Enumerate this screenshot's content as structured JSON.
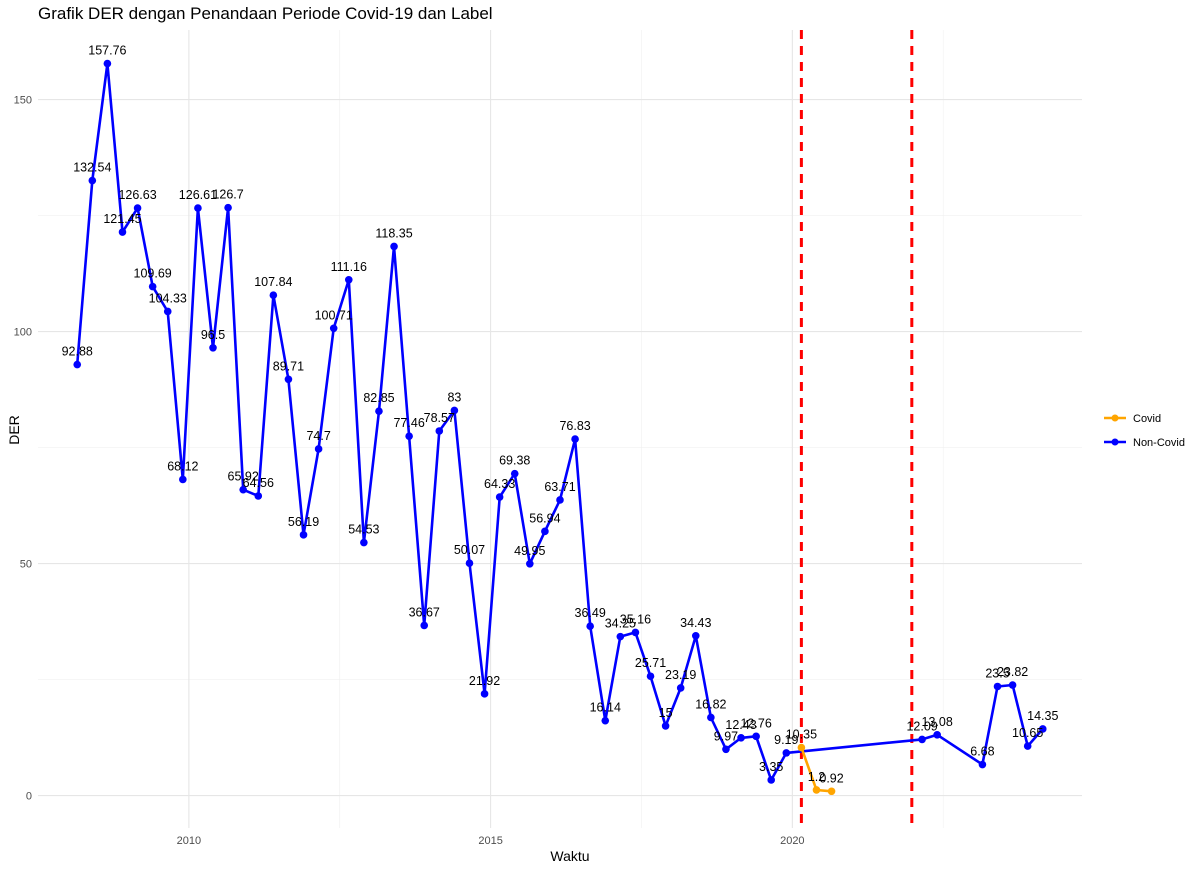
{
  "chart_data": {
    "type": "line",
    "title": "Grafik DER dengan Penandaan Periode Covid-19 dan Label",
    "xlabel": "Waktu",
    "ylabel": "DER",
    "xlim": [
      2007.5,
      2024.8
    ],
    "ylim": [
      -7,
      165
    ],
    "x_ticks": [
      2010,
      2015,
      2020
    ],
    "y_ticks": [
      0,
      50,
      100,
      150
    ],
    "grid": true,
    "legend_position": "right",
    "colors": {
      "Non-Covid": "#0000ff",
      "Covid": "#ffa500",
      "period_marker": "#ff0000"
    },
    "covid_period_markers": [
      2020.15,
      2021.98
    ],
    "series": [
      {
        "name": "Non-Covid",
        "x": [
          2008.15,
          2008.4,
          2008.65,
          2008.9,
          2009.15,
          2009.4,
          2009.65,
          2009.9,
          2010.15,
          2010.4,
          2010.65,
          2010.9,
          2011.15,
          2011.4,
          2011.65,
          2011.9,
          2012.15,
          2012.4,
          2012.65,
          2012.9,
          2013.15,
          2013.4,
          2013.65,
          2013.9,
          2014.15,
          2014.4,
          2014.65,
          2014.9,
          2015.15,
          2015.4,
          2015.65,
          2015.9,
          2016.15,
          2016.4,
          2016.65,
          2016.9,
          2017.15,
          2017.4,
          2017.65,
          2017.9,
          2018.15,
          2018.4,
          2018.65,
          2018.9,
          2019.15,
          2019.4,
          2019.65,
          2019.9,
          2022.15,
          2022.4,
          2023.15,
          2023.4,
          2023.65,
          2023.9,
          2024.15
        ],
        "y": [
          92.88,
          132.54,
          157.76,
          121.45,
          126.63,
          109.69,
          104.33,
          68.12,
          126.61,
          96.5,
          126.7,
          65.92,
          64.56,
          107.84,
          89.71,
          56.19,
          74.7,
          100.71,
          111.16,
          54.53,
          82.85,
          118.35,
          77.46,
          36.67,
          78.57,
          83,
          50.07,
          21.92,
          64.33,
          69.38,
          49.95,
          56.94,
          63.71,
          76.83,
          36.49,
          16.14,
          34.25,
          35.16,
          25.71,
          15,
          23.19,
          34.43,
          16.82,
          9.97,
          12.43,
          12.76,
          3.35,
          9.19,
          12.09,
          13.08,
          6.68,
          23.5,
          23.82,
          10.65,
          14.35
        ],
        "labels": [
          "92.88",
          "132.54",
          "157.76",
          "121.45",
          "126.63",
          "109.69",
          "104.33",
          "68.12",
          "126.61",
          "96.5",
          "126.7",
          "65.92",
          "64.56",
          "107.84",
          "89.71",
          "56.19",
          "74.7",
          "100.71",
          "111.16",
          "54.53",
          "82.85",
          "118.35",
          "77.46",
          "36.67",
          "78.57",
          "83",
          "50.07",
          "21.92",
          "64.33",
          "69.38",
          "49.95",
          "56.94",
          "63.71",
          "76.83",
          "36.49",
          "16.14",
          "34.25",
          "35.16",
          "25.71",
          "15",
          "23.19",
          "34.43",
          "16.82",
          "9.97",
          "12.43",
          "12.76",
          "3.35",
          "9.19",
          "12.09",
          "13.08",
          "6.68",
          "23.5",
          "23.82",
          "10.65",
          "14.35"
        ]
      },
      {
        "name": "Covid",
        "x": [
          2020.15,
          2020.4,
          2020.65
        ],
        "y": [
          10.35,
          1.2,
          0.92
        ],
        "labels": [
          "10.35",
          "1.2",
          "0.92"
        ]
      }
    ]
  }
}
